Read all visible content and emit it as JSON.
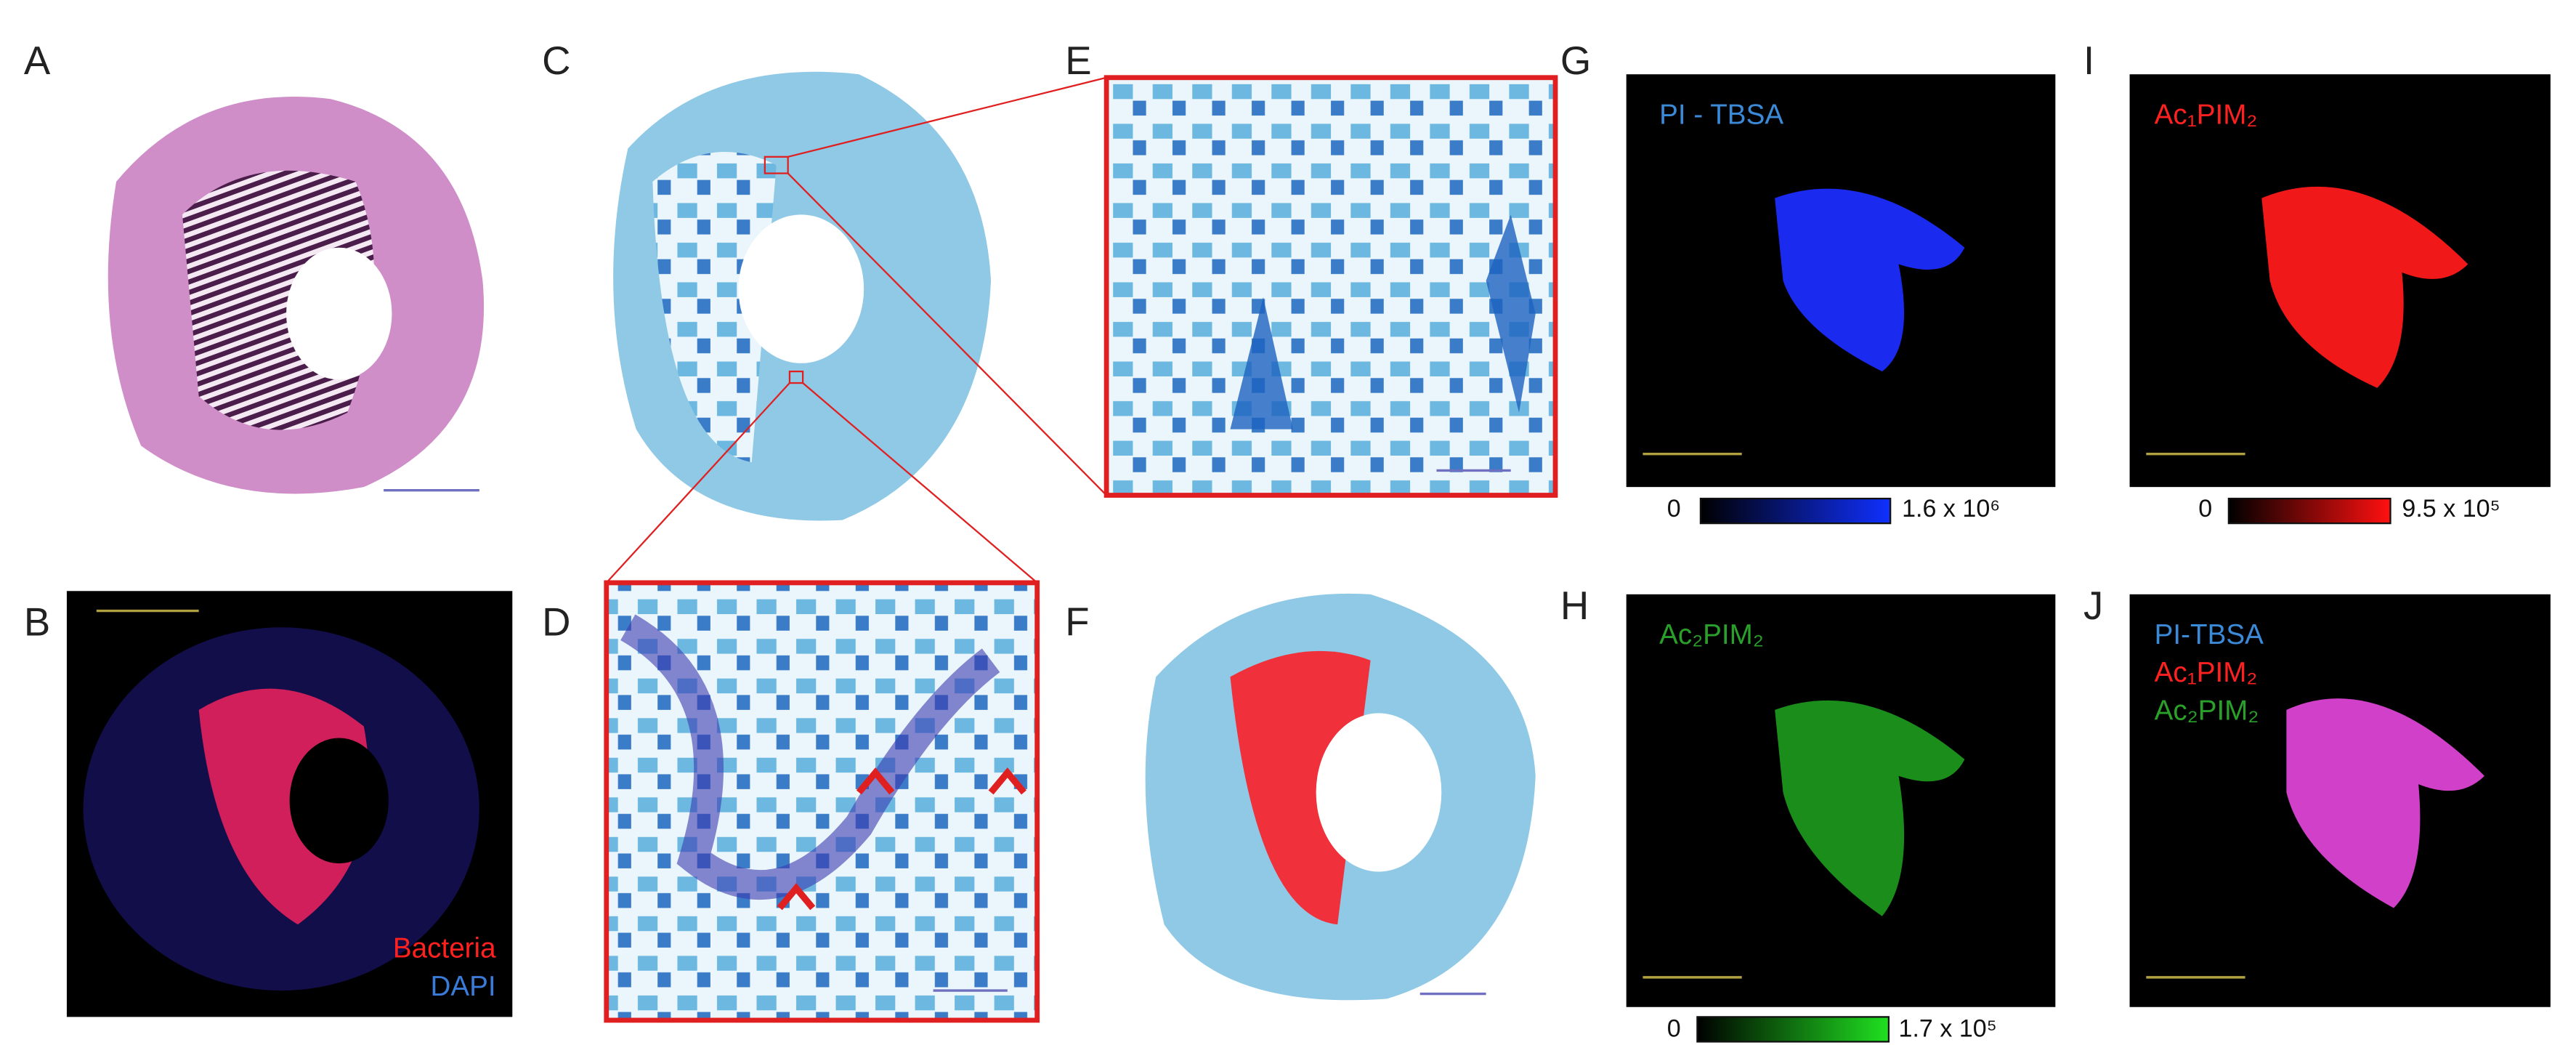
{
  "panels": {
    "A": {
      "label": "A"
    },
    "B": {
      "label": "B",
      "legend": [
        "Bacteria",
        "DAPI"
      ]
    },
    "C": {
      "label": "C"
    },
    "D": {
      "label": "D"
    },
    "E": {
      "label": "E"
    },
    "F": {
      "label": "F"
    },
    "G": {
      "label": "G",
      "title": "PI - TBSA",
      "colorbar": {
        "min": 0,
        "max": "1.6 x 10⁶"
      }
    },
    "H": {
      "label": "H",
      "title": "Ac₂PIM₂",
      "colorbar": {
        "min": 0,
        "max": "1.7 x 10⁵"
      }
    },
    "I": {
      "label": "I",
      "title": "Ac₁PIM₂",
      "colorbar": {
        "min": 0,
        "max": "9.5 x 10⁵"
      }
    },
    "J": {
      "label": "J",
      "legend": [
        "PI-TBSA",
        "Ac₁PIM₂",
        "Ac₂PIM₂"
      ]
    }
  }
}
